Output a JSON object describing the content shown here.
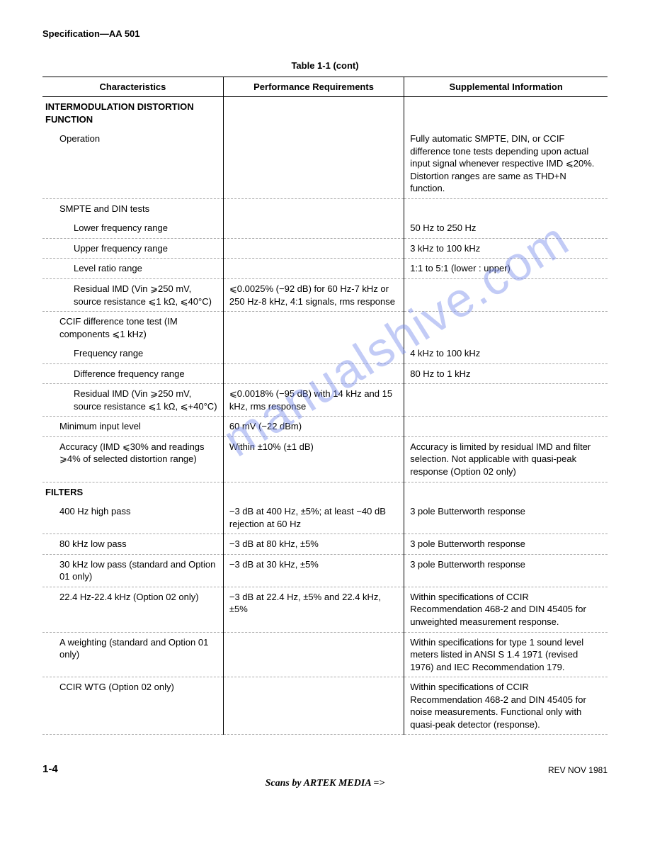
{
  "header": {
    "title": "Specification—AA 501"
  },
  "caption": "Table 1-1 (cont)",
  "columns": {
    "c1": "Characteristics",
    "c2": "Performance Requirements",
    "c3": "Supplemental Information"
  },
  "sections": {
    "imd": {
      "title": "INTERMODULATION DISTORTION FUNCTION",
      "rows": {
        "operation": {
          "label": "Operation",
          "perf": "",
          "supp": "Fully automatic SMPTE, DIN, or CCIF difference tone tests depending upon actual input signal whenever respective IMD ⩽20%. Distortion ranges are same as THD+N function."
        },
        "smpte_din": {
          "label": "SMPTE and DIN tests",
          "perf": "",
          "supp": ""
        },
        "lower_freq": {
          "label": "Lower frequency range",
          "perf": "",
          "supp": "50 Hz to 250 Hz"
        },
        "upper_freq": {
          "label": "Upper frequency range",
          "perf": "",
          "supp": "3 kHz to 100 kHz"
        },
        "level_ratio": {
          "label": "Level ratio range",
          "perf": "",
          "supp": "1:1 to 5:1 (lower : upper)"
        },
        "residual_imd1": {
          "label": "Residual IMD (Vin ⩾250 mV, source resistance ⩽1 kΩ, ⩽40°C)",
          "perf": "⩽0.0025% (−92 dB) for 60 Hz-7 kHz or 250 Hz-8 kHz, 4:1 signals, rms response",
          "supp": ""
        },
        "ccif": {
          "label": "CCIF difference tone test (IM components ⩽1 kHz)",
          "perf": "",
          "supp": ""
        },
        "freq_range": {
          "label": "Frequency range",
          "perf": "",
          "supp": "4 kHz to 100 kHz"
        },
        "diff_freq": {
          "label": "Difference frequency range",
          "perf": "",
          "supp": "80 Hz to 1 kHz"
        },
        "residual_imd2": {
          "label": "Residual IMD (Vin ⩾250 mV, source resistance ⩽1 kΩ, ⩽+40°C)",
          "perf": "⩽0.0018% (−95 dB) with 14 kHz and 15 kHz, rms response",
          "supp": ""
        },
        "min_input": {
          "label": "Minimum input level",
          "perf": "60 mV (−22 dBm)",
          "supp": ""
        },
        "accuracy": {
          "label": "Accuracy (IMD ⩽30% and readings ⩾4% of selected distortion range)",
          "perf": "Within ±10% (±1 dB)",
          "supp": "Accuracy is limited by residual IMD and filter selection. Not applicable with quasi-peak response (Option 02 only)"
        }
      }
    },
    "filters": {
      "title": "FILTERS",
      "rows": {
        "400hz": {
          "label": "400 Hz high pass",
          "perf": "−3 dB at 400 Hz, ±5%; at least −40 dB rejection at 60 Hz",
          "supp": "3 pole Butterworth response"
        },
        "80khz": {
          "label": "80 kHz low pass",
          "perf": "−3 dB at 80 kHz, ±5%",
          "supp": "3 pole Butterworth response"
        },
        "30khz": {
          "label": "30 kHz low pass (standard and Option 01 only)",
          "perf": "−3 dB at 30 kHz, ±5%",
          "supp": "3 pole Butterworth response"
        },
        "224hz": {
          "label": "22.4 Hz-22.4 kHz (Option 02 only)",
          "perf": "−3 dB at 22.4 Hz, ±5% and 22.4 kHz, ±5%",
          "supp": "Within specifications of CCIR Recommendation 468-2 and DIN 45405 for unweighted measurement response."
        },
        "aweight": {
          "label": "A weighting (standard and Option 01 only)",
          "perf": "",
          "supp": "Within specifications for type 1 sound level meters listed in ANSI S 1.4 1971 (revised 1976) and IEC Recommendation 179."
        },
        "ccir_wtg": {
          "label": "CCIR WTG (Option 02 only)",
          "perf": "",
          "supp": "Within specifications of CCIR Recommendation 468-2 and DIN 45405 for noise measurements. Functional only with quasi-peak detector (response)."
        }
      }
    }
  },
  "footer": {
    "page": "1-4",
    "rev": "REV NOV 1981",
    "credit": "Scans by ARTEK MEDIA =>"
  },
  "watermark": "manualshive.com"
}
